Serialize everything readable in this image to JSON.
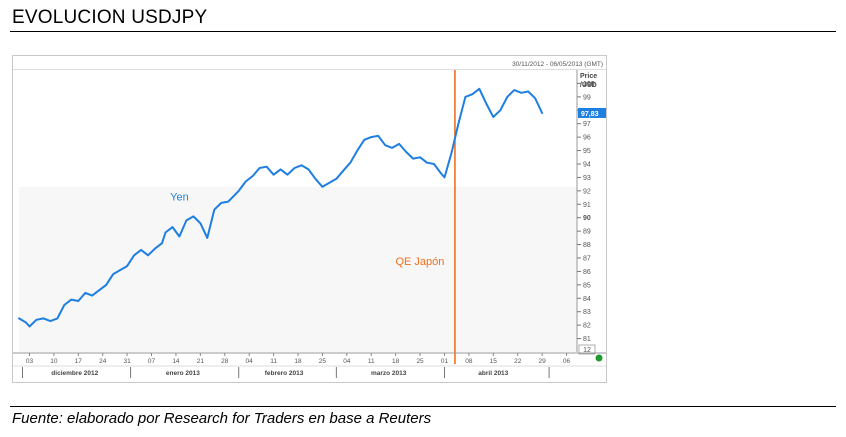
{
  "page": {
    "title": "EVOLUCION USDJPY",
    "source": "Fuente: elaborado por Research for Traders en base a Reuters"
  },
  "chart_data": {
    "type": "line",
    "date_range": "30/11/2012 - 06/05/2013 (GMT)",
    "ylabel": "Price\n/USD",
    "ylim": [
      80,
      101
    ],
    "yticks": [
      81,
      82,
      83,
      84,
      85,
      86,
      87,
      88,
      89,
      90,
      91,
      92,
      93,
      94,
      95,
      96,
      97,
      98,
      99,
      100
    ],
    "bold_yticks": [
      90,
      100
    ],
    "current_price_label": "97,83",
    "corner_label": "12",
    "xlim": [
      "2012-11-30",
      "2013-05-09"
    ],
    "day_ticks": [
      {
        "label": "03",
        "date": "2012-12-03"
      },
      {
        "label": "10",
        "date": "2012-12-10"
      },
      {
        "label": "17",
        "date": "2012-12-17"
      },
      {
        "label": "24",
        "date": "2012-12-24"
      },
      {
        "label": "31",
        "date": "2012-12-31"
      },
      {
        "label": "07",
        "date": "2013-01-07"
      },
      {
        "label": "14",
        "date": "2013-01-14"
      },
      {
        "label": "21",
        "date": "2013-01-21"
      },
      {
        "label": "28",
        "date": "2013-01-28"
      },
      {
        "label": "04",
        "date": "2013-02-04"
      },
      {
        "label": "11",
        "date": "2013-02-11"
      },
      {
        "label": "18",
        "date": "2013-02-18"
      },
      {
        "label": "25",
        "date": "2013-02-25"
      },
      {
        "label": "04",
        "date": "2013-03-04"
      },
      {
        "label": "11",
        "date": "2013-03-11"
      },
      {
        "label": "18",
        "date": "2013-03-18"
      },
      {
        "label": "25",
        "date": "2013-03-25"
      },
      {
        "label": "01",
        "date": "2013-04-01"
      },
      {
        "label": "08",
        "date": "2013-04-08"
      },
      {
        "label": "15",
        "date": "2013-04-15"
      },
      {
        "label": "22",
        "date": "2013-04-22"
      },
      {
        "label": "29",
        "date": "2013-04-29"
      },
      {
        "label": "06",
        "date": "2013-05-06"
      }
    ],
    "month_labels": [
      {
        "label": "diciembre 2012",
        "date": "2012-12-16"
      },
      {
        "label": "enero 2013",
        "date": "2013-01-16"
      },
      {
        "label": "febrero 2013",
        "date": "2013-02-14"
      },
      {
        "label": "marzo 2013",
        "date": "2013-03-16"
      },
      {
        "label": "abril 2013",
        "date": "2013-04-15"
      }
    ],
    "month_separators": [
      "2012-12-01",
      "2013-01-01",
      "2013-02-01",
      "2013-03-01",
      "2013-04-01",
      "2013-05-01"
    ],
    "series": [
      {
        "name": "Yen",
        "color": "#1f7fe0",
        "points": [
          [
            "2012-11-30",
            82.5
          ],
          [
            "2012-12-02",
            82.2
          ],
          [
            "2012-12-03",
            81.9
          ],
          [
            "2012-12-05",
            82.4
          ],
          [
            "2012-12-07",
            82.5
          ],
          [
            "2012-12-09",
            82.3
          ],
          [
            "2012-12-11",
            82.5
          ],
          [
            "2012-12-13",
            83.5
          ],
          [
            "2012-12-15",
            83.9
          ],
          [
            "2012-12-17",
            83.8
          ],
          [
            "2012-12-19",
            84.4
          ],
          [
            "2012-12-21",
            84.2
          ],
          [
            "2012-12-23",
            84.6
          ],
          [
            "2012-12-25",
            85.0
          ],
          [
            "2012-12-27",
            85.8
          ],
          [
            "2012-12-29",
            86.1
          ],
          [
            "2012-12-31",
            86.4
          ],
          [
            "2013-01-02",
            87.2
          ],
          [
            "2013-01-04",
            87.6
          ],
          [
            "2013-01-06",
            87.2
          ],
          [
            "2013-01-08",
            87.7
          ],
          [
            "2013-01-10",
            88.1
          ],
          [
            "2013-01-11",
            88.9
          ],
          [
            "2013-01-13",
            89.3
          ],
          [
            "2013-01-15",
            88.6
          ],
          [
            "2013-01-17",
            89.8
          ],
          [
            "2013-01-19",
            90.1
          ],
          [
            "2013-01-21",
            89.6
          ],
          [
            "2013-01-23",
            88.5
          ],
          [
            "2013-01-25",
            90.6
          ],
          [
            "2013-01-27",
            91.1
          ],
          [
            "2013-01-29",
            91.2
          ],
          [
            "2013-02-01",
            92.0
          ],
          [
            "2013-02-03",
            92.7
          ],
          [
            "2013-02-05",
            93.1
          ],
          [
            "2013-02-07",
            93.7
          ],
          [
            "2013-02-09",
            93.8
          ],
          [
            "2013-02-11",
            93.2
          ],
          [
            "2013-02-13",
            93.6
          ],
          [
            "2013-02-15",
            93.2
          ],
          [
            "2013-02-17",
            93.7
          ],
          [
            "2013-02-19",
            93.9
          ],
          [
            "2013-02-21",
            93.6
          ],
          [
            "2013-02-23",
            92.9
          ],
          [
            "2013-02-25",
            92.3
          ],
          [
            "2013-02-27",
            92.6
          ],
          [
            "2013-03-01",
            92.9
          ],
          [
            "2013-03-03",
            93.5
          ],
          [
            "2013-03-05",
            94.1
          ],
          [
            "2013-03-07",
            95.0
          ],
          [
            "2013-03-09",
            95.8
          ],
          [
            "2013-03-11",
            96.0
          ],
          [
            "2013-03-13",
            96.1
          ],
          [
            "2013-03-15",
            95.4
          ],
          [
            "2013-03-17",
            95.2
          ],
          [
            "2013-03-19",
            95.5
          ],
          [
            "2013-03-21",
            94.9
          ],
          [
            "2013-03-23",
            94.4
          ],
          [
            "2013-03-25",
            94.5
          ],
          [
            "2013-03-27",
            94.1
          ],
          [
            "2013-03-29",
            94.0
          ],
          [
            "2013-03-31",
            93.3
          ],
          [
            "2013-04-01",
            93.0
          ],
          [
            "2013-04-03",
            94.8
          ],
          [
            "2013-04-05",
            97.0
          ],
          [
            "2013-04-07",
            99.0
          ],
          [
            "2013-04-09",
            99.2
          ],
          [
            "2013-04-11",
            99.6
          ],
          [
            "2013-04-13",
            98.5
          ],
          [
            "2013-04-15",
            97.5
          ],
          [
            "2013-04-17",
            98.0
          ],
          [
            "2013-04-19",
            99.0
          ],
          [
            "2013-04-21",
            99.5
          ],
          [
            "2013-04-23",
            99.3
          ],
          [
            "2013-04-25",
            99.4
          ],
          [
            "2013-04-27",
            98.9
          ],
          [
            "2013-04-29",
            97.8
          ]
        ]
      }
    ],
    "series_label": {
      "text": "Yen",
      "date": "2013-01-15",
      "value": 91.3,
      "color": "#1f7fe0"
    },
    "event_marker": {
      "label": "QE Japón",
      "date": "2013-04-04",
      "color": "#f07020"
    },
    "current_price_marker_color": "#1f7fe0",
    "status_dot_color": "#1e9a2e",
    "grid": false
  }
}
